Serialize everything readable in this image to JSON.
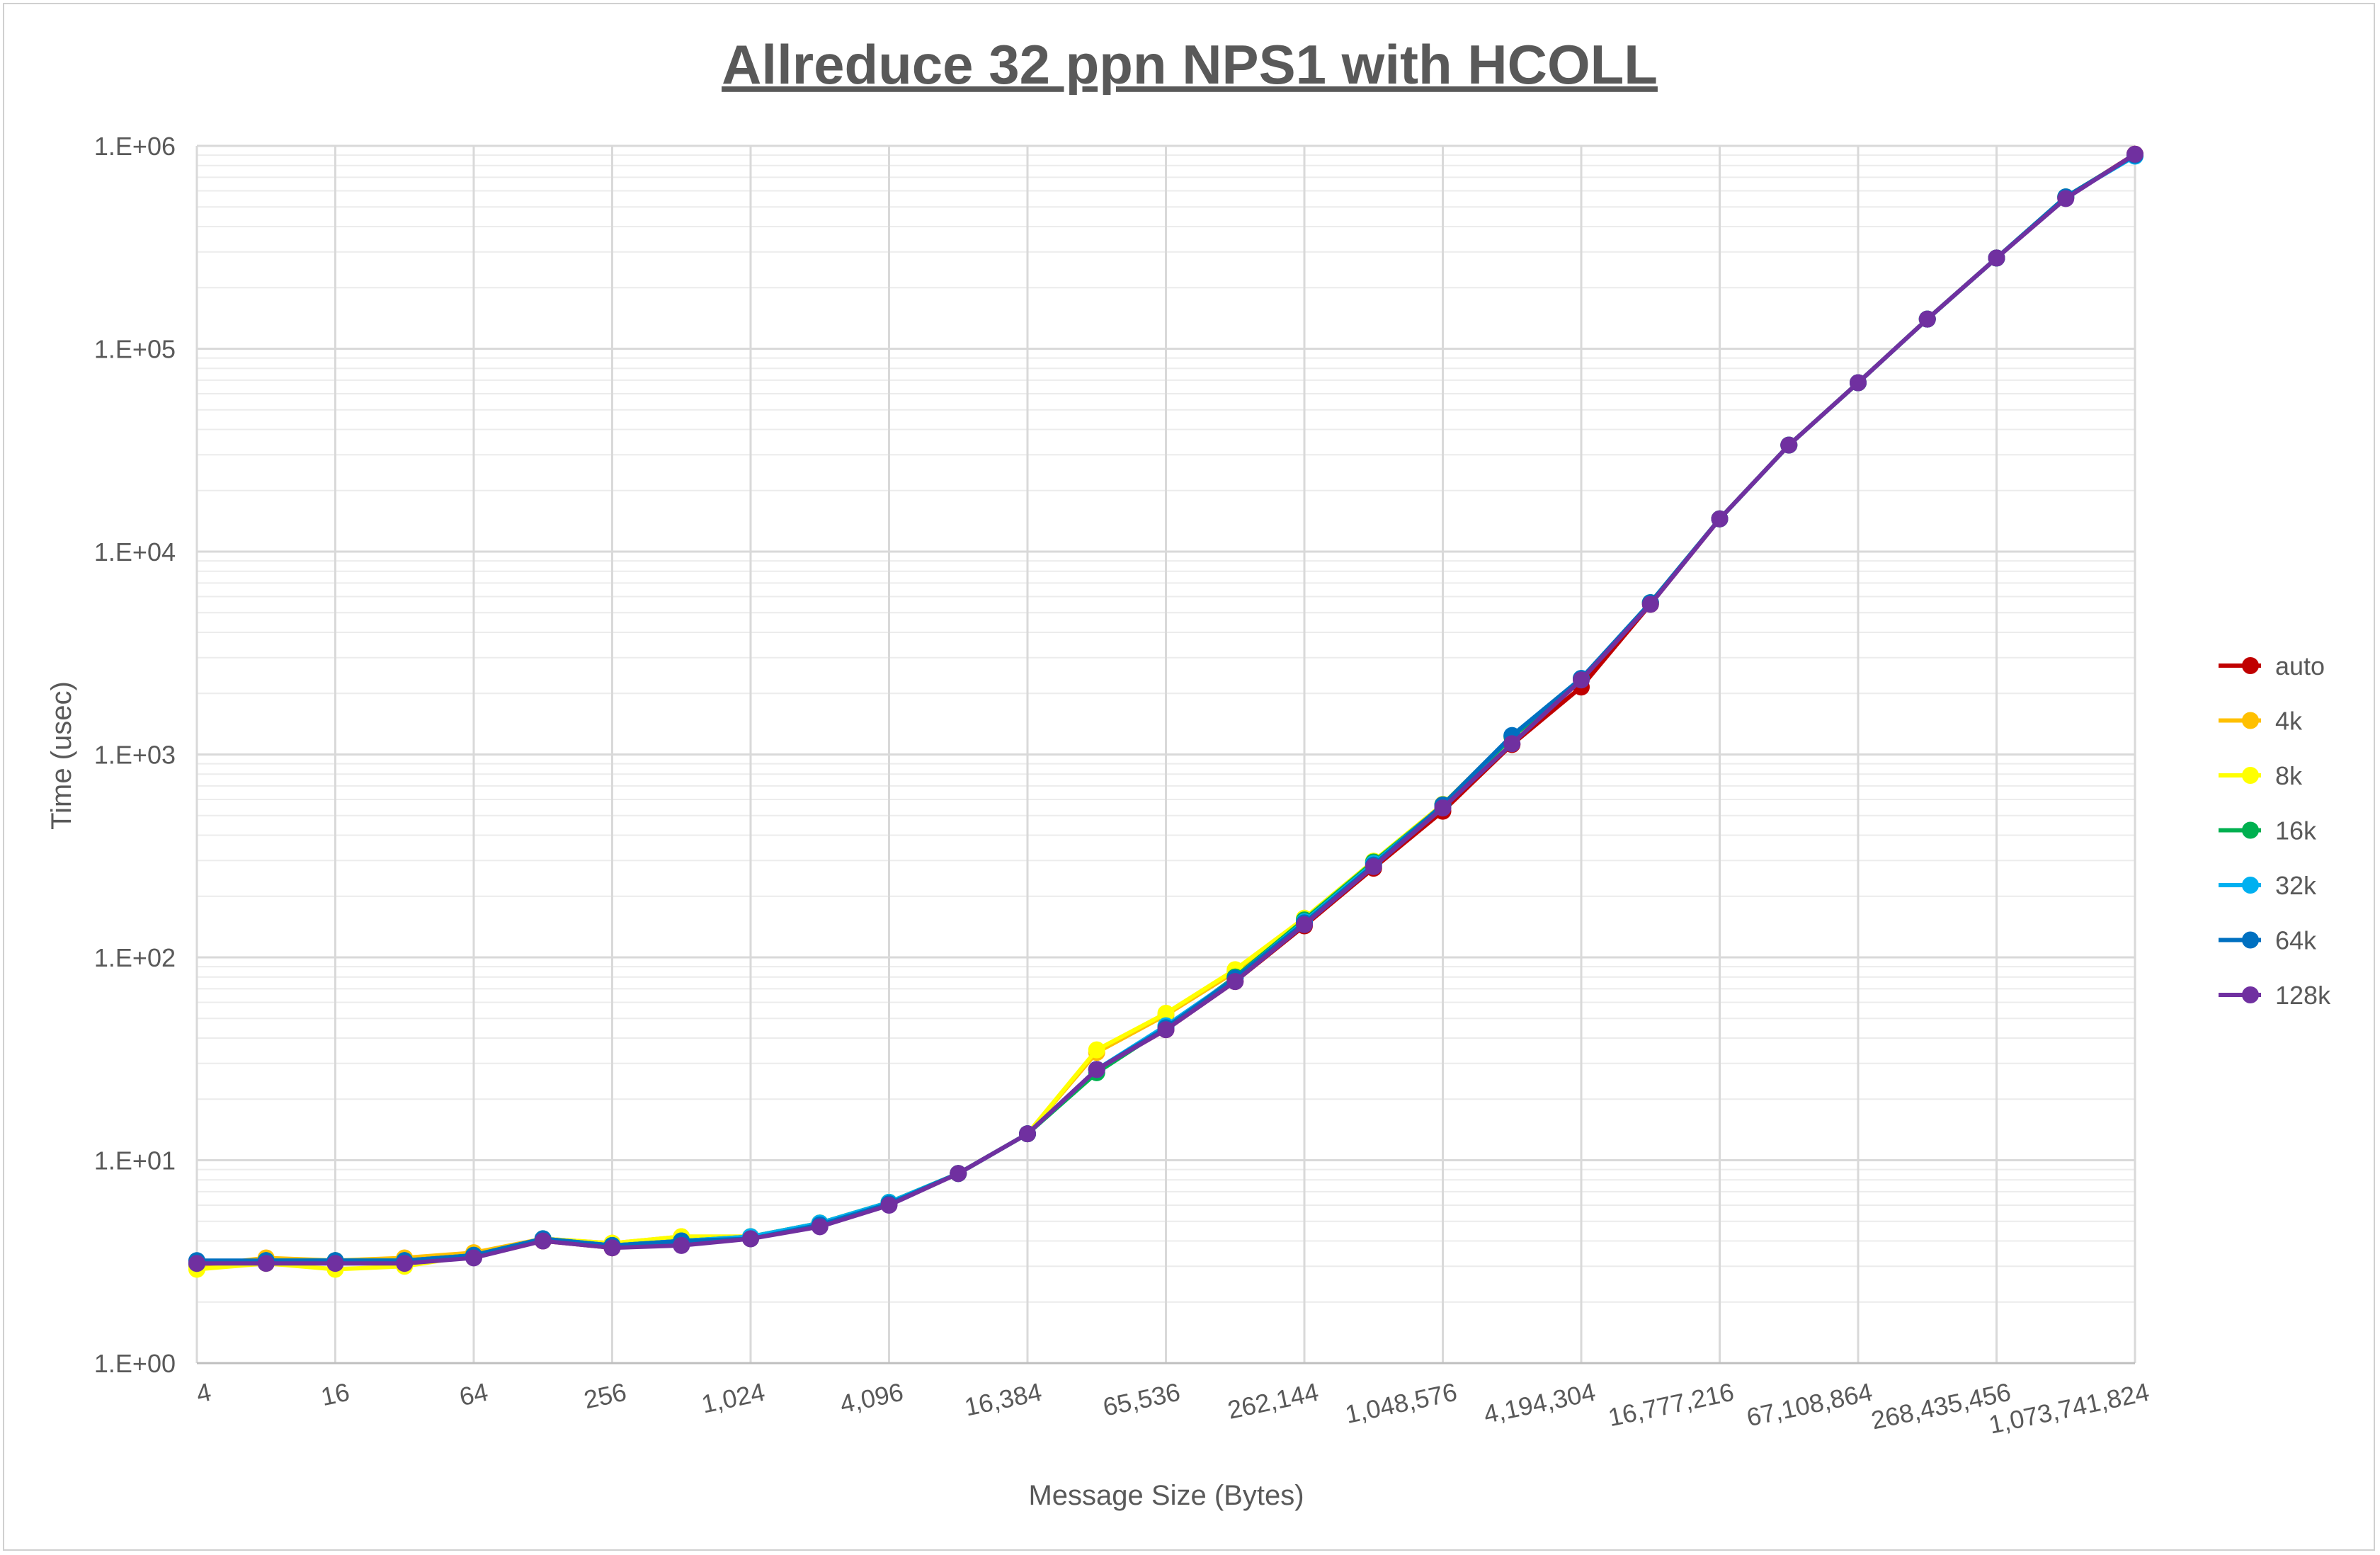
{
  "chart_data": {
    "type": "line",
    "title": "Allreduce 32 ppn NPS1 with HCOLL",
    "xlabel": "Message Size (Bytes)",
    "ylabel": "Time (usec)",
    "x_scale": "log2",
    "y_scale": "log10",
    "ylim": [
      1,
      1000000
    ],
    "grid": true,
    "legend_position": "right",
    "x": [
      4,
      8,
      16,
      32,
      64,
      128,
      256,
      512,
      1024,
      2048,
      4096,
      8192,
      16384,
      32768,
      65536,
      131072,
      262144,
      524288,
      1048576,
      2097152,
      4194304,
      8388608,
      16777216,
      33554432,
      67108864,
      134217728,
      268435456,
      536870912,
      1073741824
    ],
    "x_tick_labels": [
      {
        "x": 4,
        "label": "4"
      },
      {
        "x": 16,
        "label": "16"
      },
      {
        "x": 64,
        "label": "64"
      },
      {
        "x": 256,
        "label": "256"
      },
      {
        "x": 1024,
        "label": "1,024"
      },
      {
        "x": 4096,
        "label": "4,096"
      },
      {
        "x": 16384,
        "label": "16,384"
      },
      {
        "x": 65536,
        "label": "65,536"
      },
      {
        "x": 262144,
        "label": "262,144"
      },
      {
        "x": 1048576,
        "label": "1,048,576"
      },
      {
        "x": 4194304,
        "label": "4,194,304"
      },
      {
        "x": 16777216,
        "label": "16,777,216"
      },
      {
        "x": 67108864,
        "label": "67,108,864"
      },
      {
        "x": 268435456,
        "label": "268,435,456"
      },
      {
        "x": 1073741824,
        "label": "1,073,741,824"
      }
    ],
    "y_tick_labels": [
      {
        "y": 1,
        "label": "1.E+00"
      },
      {
        "y": 10,
        "label": "1.E+01"
      },
      {
        "y": 100,
        "label": "1.E+02"
      },
      {
        "y": 1000,
        "label": "1.E+03"
      },
      {
        "y": 10000,
        "label": "1.E+04"
      },
      {
        "y": 100000,
        "label": "1.E+05"
      },
      {
        "y": 1000000,
        "label": "1.E+06"
      }
    ],
    "series": [
      {
        "name": "auto",
        "color": "#c00000",
        "values": [
          3.1,
          3.2,
          3.2,
          3.2,
          3.4,
          4.0,
          3.7,
          3.9,
          4.1,
          4.8,
          6.1,
          8.6,
          13.5,
          28,
          44,
          76,
          143,
          275,
          525,
          1120,
          2150,
          5500,
          14500,
          33500,
          68000,
          140000,
          280000,
          555000,
          910000
        ]
      },
      {
        "name": "4k",
        "color": "#ffc000",
        "values": [
          3.0,
          3.3,
          3.2,
          3.3,
          3.5,
          4.1,
          3.9,
          4.2,
          4.2,
          4.9,
          6.2,
          8.6,
          13.5,
          34,
          52,
          85,
          155,
          295,
          565,
          1220,
          2350,
          5600,
          14500,
          33500,
          68000,
          140000,
          280000,
          560000,
          900000
        ]
      },
      {
        "name": "8k",
        "color": "#ffff00",
        "values": [
          2.9,
          3.1,
          2.9,
          3.0,
          3.4,
          4.1,
          3.9,
          4.2,
          4.2,
          4.9,
          6.2,
          8.6,
          13.5,
          35,
          53,
          87,
          156,
          298,
          568,
          1230,
          2360,
          5600,
          14500,
          33500,
          68000,
          140000,
          280000,
          560000,
          900000
        ]
      },
      {
        "name": "16k",
        "color": "#00b050",
        "values": [
          3.1,
          3.2,
          3.2,
          3.2,
          3.4,
          4.1,
          3.8,
          4.0,
          4.2,
          4.9,
          6.2,
          8.6,
          13.5,
          27,
          45,
          80,
          153,
          295,
          560,
          1220,
          2360,
          5600,
          14500,
          33500,
          68000,
          140000,
          280000,
          560000,
          900000
        ]
      },
      {
        "name": "32k",
        "color": "#00b0f0",
        "values": [
          3.1,
          3.2,
          3.2,
          3.2,
          3.4,
          4.1,
          3.8,
          4.0,
          4.2,
          4.9,
          6.2,
          8.6,
          13.5,
          28,
          46,
          79,
          150,
          290,
          560,
          1240,
          2370,
          5600,
          14500,
          33500,
          68000,
          140000,
          280000,
          560000,
          890000
        ]
      },
      {
        "name": "64k",
        "color": "#0070c0",
        "values": [
          3.2,
          3.2,
          3.2,
          3.2,
          3.4,
          4.1,
          3.8,
          4.0,
          4.1,
          4.8,
          6.1,
          8.6,
          13.5,
          28,
          45,
          79,
          148,
          285,
          565,
          1240,
          2370,
          5600,
          14500,
          33500,
          68000,
          140000,
          280000,
          560000,
          900000
        ]
      },
      {
        "name": "128k",
        "color": "#7030a0",
        "values": [
          3.1,
          3.1,
          3.1,
          3.1,
          3.3,
          4.0,
          3.7,
          3.8,
          4.1,
          4.7,
          6.0,
          8.6,
          13.5,
          28,
          44,
          76,
          145,
          280,
          545,
          1130,
          2330,
          5500,
          14500,
          33500,
          68000,
          140000,
          280000,
          550000,
          910000
        ]
      }
    ]
  }
}
